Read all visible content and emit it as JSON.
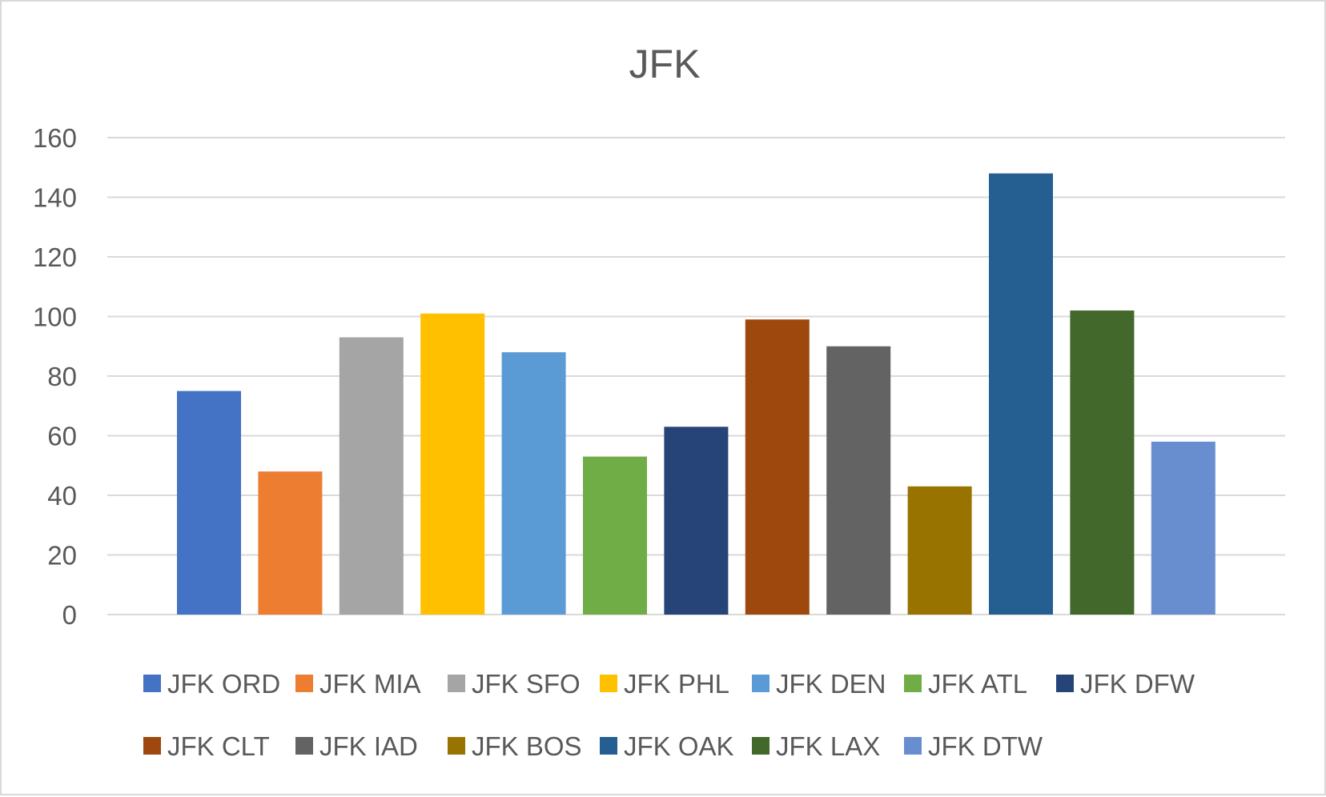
{
  "chart_data": {
    "type": "bar",
    "title": "JFK",
    "xlabel": "",
    "ylabel": "",
    "ylim": [
      0,
      160
    ],
    "yticks": [
      0,
      20,
      40,
      60,
      80,
      100,
      120,
      140,
      160
    ],
    "grid": true,
    "legend_position": "bottom",
    "series": [
      {
        "name": "JFK ORD",
        "value": 75,
        "color": "#4472C4"
      },
      {
        "name": "JFK MIA",
        "value": 48,
        "color": "#ED7D31"
      },
      {
        "name": "JFK SFO",
        "value": 93,
        "color": "#A5A5A5"
      },
      {
        "name": "JFK PHL",
        "value": 101,
        "color": "#FFC000"
      },
      {
        "name": "JFK DEN",
        "value": 88,
        "color": "#5B9BD5"
      },
      {
        "name": "JFK ATL",
        "value": 53,
        "color": "#70AD47"
      },
      {
        "name": "JFK DFW",
        "value": 63,
        "color": "#264478"
      },
      {
        "name": "JFK CLT",
        "value": 99,
        "color": "#9E480E"
      },
      {
        "name": "JFK IAD",
        "value": 90,
        "color": "#636363"
      },
      {
        "name": "JFK BOS",
        "value": 43,
        "color": "#997300"
      },
      {
        "name": "JFK OAK",
        "value": 148,
        "color": "#255E91"
      },
      {
        "name": "JFK LAX",
        "value": 102,
        "color": "#43682B"
      },
      {
        "name": "JFK DTW",
        "value": 58,
        "color": "#698ED0"
      }
    ]
  }
}
